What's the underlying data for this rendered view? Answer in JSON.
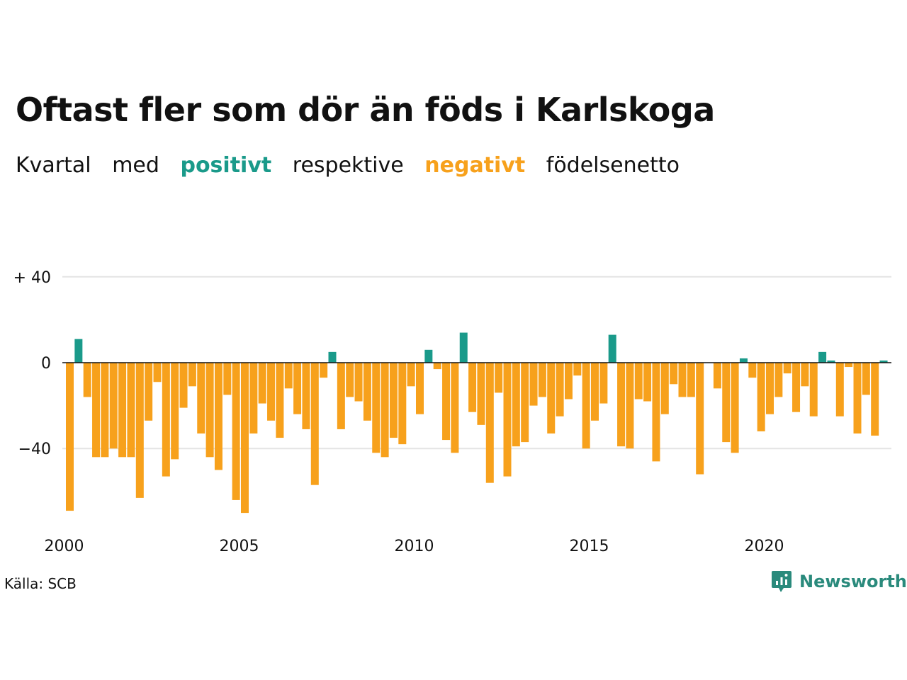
{
  "title": "Oftast fler som dör än föds i Karlskoga",
  "subtitle": {
    "w1": "Kvartal",
    "w2": "med",
    "positive": "positivt",
    "w3": "respektive",
    "negative": "negativt",
    "w4": "födelsenetto"
  },
  "colors": {
    "positive": "#1a9a8a",
    "negative": "#f7a11c",
    "grid": "#e4e4e4",
    "zero_line": "#111111"
  },
  "source": "Källa: SCB",
  "brand": {
    "name": "Newsworthy",
    "icon": "newsworthy-logo-icon"
  },
  "chart_data": {
    "type": "bar",
    "x_start": "2000 Q1",
    "x_unit": "quarter",
    "x_ticks": [
      "2000",
      "2005",
      "2010",
      "2015",
      "2020"
    ],
    "y_ticks": [
      {
        "value": 40,
        "label": "+ 40"
      },
      {
        "value": 0,
        "label": "0"
      },
      {
        "value": -40,
        "label": "−40"
      }
    ],
    "ylim": [
      -72,
      42
    ],
    "grid": true,
    "values": [
      -69,
      11,
      -16,
      -44,
      -44,
      -40,
      -44,
      -44,
      -63,
      -27,
      -9,
      -53,
      -45,
      -21,
      -11,
      -33,
      -44,
      -50,
      -15,
      -64,
      -70,
      -33,
      -19,
      -27,
      -35,
      -12,
      -24,
      -31,
      -57,
      -7,
      5,
      -31,
      -16,
      -18,
      -27,
      -42,
      -44,
      -35,
      -38,
      -11,
      -24,
      6,
      -3,
      -36,
      -42,
      14,
      -23,
      -29,
      -56,
      -14,
      -53,
      -39,
      -37,
      -20,
      -16,
      -33,
      -25,
      -17,
      -6,
      -40,
      -27,
      -19,
      13,
      -39,
      -40,
      -17,
      -18,
      -46,
      -24,
      -10,
      -16,
      -16,
      -52,
      0,
      -12,
      -37,
      -42,
      2,
      -7,
      -32,
      -24,
      -16,
      -5,
      -23,
      -11,
      -25,
      5,
      1,
      -25,
      -2,
      -33,
      -15,
      -34,
      1
    ]
  }
}
